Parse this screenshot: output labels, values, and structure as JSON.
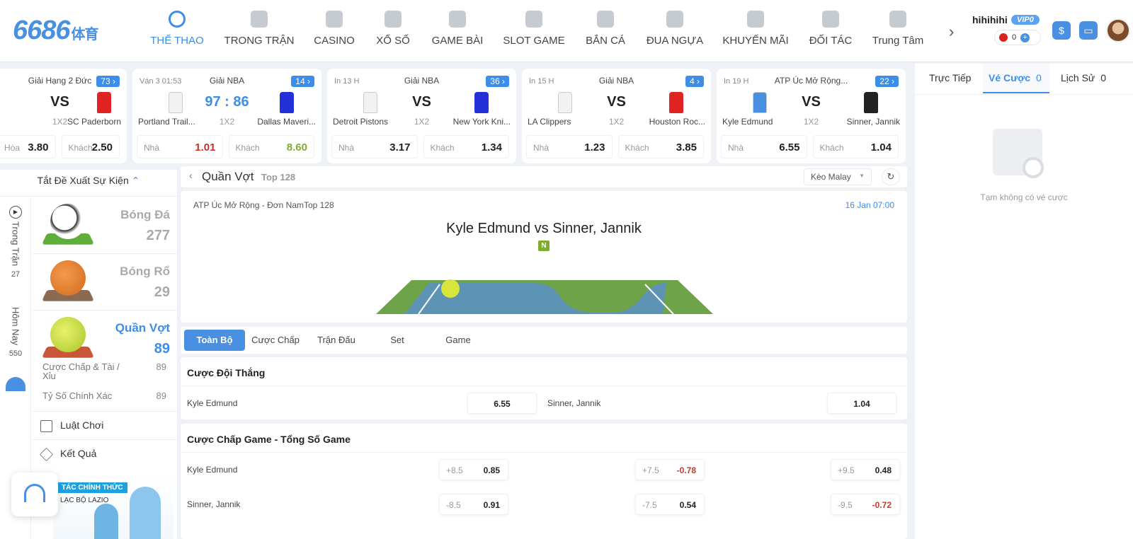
{
  "brand": {
    "logo": "6686",
    "logo_sub": "体育"
  },
  "nav": [
    {
      "label": "THỂ THAO",
      "icon": "soccer-ball-icon"
    },
    {
      "label": "TRONG TRẬN",
      "icon": "video-icon"
    },
    {
      "label": "CASINO",
      "icon": "cards-icon"
    },
    {
      "label": "XỔ SỐ",
      "icon": "lottery-ball-icon"
    },
    {
      "label": "GAME BÀI",
      "icon": "card-game-icon"
    },
    {
      "label": "SLOT GAME",
      "icon": "slot-machine-icon"
    },
    {
      "label": "BẮN CÁ",
      "icon": "fish-icon"
    },
    {
      "label": "ĐUA NGỰA",
      "icon": "horse-icon"
    },
    {
      "label": "KHUYẾN MÃI",
      "icon": "percent-icon"
    },
    {
      "label": "ĐỐI TÁC",
      "icon": "crown-icon"
    },
    {
      "label": "Trung Tâm",
      "icon": "user-icon"
    }
  ],
  "user": {
    "name": "hihihihi",
    "vip": "VIP0",
    "balance": "0"
  },
  "cards": [
    {
      "time": "",
      "league": "Giải Hạng 2 Đức",
      "count": "73",
      "center": "VS",
      "home": "",
      "away": "SC Paderborn",
      "market": "1X2",
      "o1_label": "Hòa",
      "o1": "3.80",
      "o2_label": "Khách",
      "o2": "2.50"
    },
    {
      "time": "Ván 3 01:53",
      "league": "Giải NBA",
      "count": "14",
      "center": "97 : 86",
      "home": "Portland Trail...",
      "away": "Dallas Maveri...",
      "market": "1X2",
      "o1_label": "Nhà",
      "o1": "1.01",
      "o2_label": "Khách",
      "o2": "8.60"
    },
    {
      "time": "In 13 H",
      "league": "Giải NBA",
      "count": "36",
      "center": "VS",
      "home": "Detroit Pistons",
      "away": "New York Kni...",
      "market": "1X2",
      "o1_label": "Nhà",
      "o1": "3.17",
      "o2_label": "Khách",
      "o2": "1.34"
    },
    {
      "time": "In 15 H",
      "league": "Giải NBA",
      "count": "4",
      "center": "VS",
      "home": "LA Clippers",
      "away": "Houston Roc...",
      "market": "1X2",
      "o1_label": "Nhà",
      "o1": "1.23",
      "o2_label": "Khách",
      "o2": "3.85"
    },
    {
      "time": "In 19 H",
      "league": "ATP Úc Mở Rộng...",
      "count": "22",
      "center": "VS",
      "home": "Kyle Edmund",
      "away": "Sinner, Jannik",
      "market": "1X2",
      "o1_label": "Nhà",
      "o1": "6.55",
      "o2_label": "Khách",
      "o2": "1.04"
    }
  ],
  "sidebar": {
    "suggest": "Tắt Đề Xuất Sự Kiện",
    "live_label": "Trong Trận",
    "live_count": "27",
    "today_label": "Hôm Nay",
    "today_count": "550",
    "sports": [
      {
        "name": "Bóng Đá",
        "count": "277"
      },
      {
        "name": "Bóng Rổ",
        "count": "29"
      },
      {
        "name": "Quần Vợt",
        "count": "89"
      }
    ],
    "sub1": "Cược Chấp & Tài / Xỉu",
    "sub1_n": "89",
    "sub2": "Tỷ Số Chính Xác",
    "sub2_n": "89",
    "rules": "Luật Chơi",
    "results": "Kết Quả",
    "promo_tag": "TÁC CHÍNH THỨC",
    "promo_sub": "LẠC BỘ LAZIO"
  },
  "main": {
    "title": "Quần Vợt",
    "top": "Top 128",
    "odds_type": "Kèo Malay",
    "competition": "ATP Úc Mở Rộng - Đơn NamTop 128",
    "datetime": "16 Jan 07:00",
    "teams": "Kyle Edmund  vs  Sinner, Jannik",
    "badge": "N",
    "tabs": [
      "Toàn Bộ",
      "Cược Chấp",
      "Trận Đấu",
      "Set",
      "Game"
    ]
  },
  "winner": {
    "title": "Cược Đội Thắng",
    "home": "Kyle Edmund",
    "home_odd": "6.55",
    "away": "Sinner, Jannik",
    "away_odd": "1.04"
  },
  "handicap": {
    "title": "Cược Chấp Game - Tổng Số Game",
    "rows": [
      {
        "team": "Kyle Edmund",
        "cells": [
          {
            "h": "+8.5",
            "v": "0.85"
          },
          {
            "h": "+7.5",
            "v": "-0.78"
          },
          {
            "h": "+9.5",
            "v": "0.48"
          }
        ]
      },
      {
        "team": "Sinner, Jannik",
        "cells": [
          {
            "h": "-8.5",
            "v": "0.91"
          },
          {
            "h": "-7.5",
            "v": "0.54"
          },
          {
            "h": "-9.5",
            "v": "-0.72"
          }
        ]
      }
    ]
  },
  "right": {
    "tabs": [
      {
        "label": "Trực Tiếp",
        "count": ""
      },
      {
        "label": "Vé Cược",
        "count": "0"
      },
      {
        "label": "Lịch Sử",
        "count": "0"
      }
    ],
    "empty": "Tạm không có vé cược"
  },
  "colors": {
    "accent": "#3c8ee8",
    "negative": "#c0392b",
    "positive": "#7fae2f"
  }
}
